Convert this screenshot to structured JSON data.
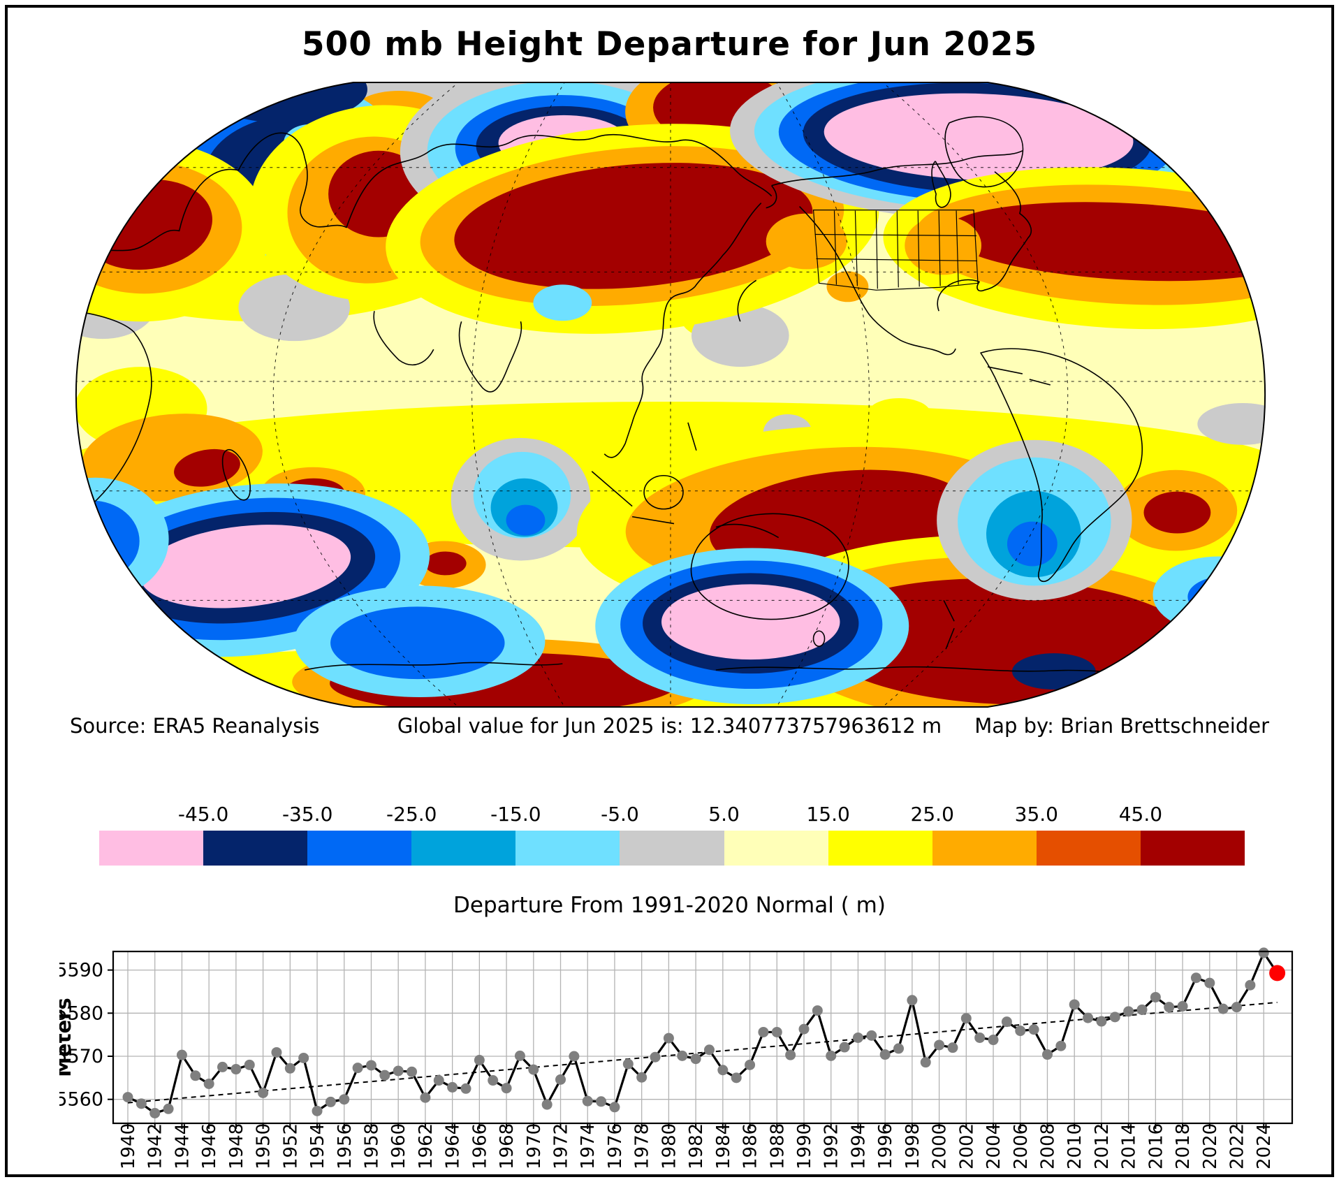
{
  "title": "500 mb Height Departure for Jun 2025",
  "footer": {
    "source": "Source: ERA5 Reanalysis",
    "global_value": "Global value for Jun 2025 is: 12.340773757963612 m",
    "credit": "Map by: Brian Brettschneider"
  },
  "colorbar": {
    "caption": "Departure From 1991-2020 Normal ( m)",
    "tick_labels": [
      "-45.0",
      "-35.0",
      "-25.0",
      "-15.0",
      "-5.0",
      "5.0",
      "15.0",
      "25.0",
      "35.0",
      "45.0"
    ],
    "colors": [
      "#FFBEE3",
      "#04246B",
      "#0069F5",
      "#00A3DC",
      "#6FE0FF",
      "#CBCBCB",
      "#FFFFB8",
      "#FFFF00",
      "#FFAB00",
      "#E54F00",
      "#A30000"
    ]
  },
  "chart_data": {
    "type": "line",
    "ylabel": "Meters",
    "x_start": 1940,
    "x_end": 2025,
    "x_tick_step": 2,
    "x_tick_labels": [
      "1940",
      "1942",
      "1944",
      "1946",
      "1948",
      "1950",
      "1952",
      "1954",
      "1956",
      "1958",
      "1960",
      "1962",
      "1964",
      "1966",
      "1968",
      "1970",
      "1972",
      "1974",
      "1976",
      "1978",
      "1980",
      "1982",
      "1984",
      "1986",
      "1988",
      "1990",
      "1992",
      "1994",
      "1996",
      "1998",
      "2000",
      "2002",
      "2004",
      "2006",
      "2008",
      "2010",
      "2012",
      "2014",
      "2016",
      "2018",
      "2020",
      "2022",
      "2024"
    ],
    "ytick_values": [
      5560,
      5570,
      5580,
      5590
    ],
    "ytick_labels": [
      "5560",
      "5570",
      "5580",
      "5590"
    ],
    "ylim": [
      5554.4,
      5594.3
    ],
    "values": [
      5560.5,
      5559.0,
      5556.8,
      5557.8,
      5570.3,
      5565.5,
      5563.6,
      5567.5,
      5567.0,
      5568.0,
      5561.5,
      5570.9,
      5567.2,
      5569.6,
      5557.3,
      5559.4,
      5560.0,
      5567.3,
      5567.9,
      5565.6,
      5566.6,
      5566.4,
      5560.4,
      5564.4,
      5562.8,
      5562.5,
      5569.1,
      5564.4,
      5562.6,
      5570.1,
      5566.9,
      5558.8,
      5564.6,
      5570.0,
      5559.6,
      5559.5,
      5558.2,
      5568.2,
      5565.1,
      5569.8,
      5574.2,
      5570.1,
      5569.4,
      5571.5,
      5566.8,
      5565.0,
      5568.0,
      5575.6,
      5575.6,
      5570.3,
      5576.3,
      5580.6,
      5570.1,
      5572.1,
      5574.3,
      5574.8,
      5570.4,
      5571.8,
      5583.0,
      5568.6,
      5572.6,
      5572.0,
      5578.8,
      5574.3,
      5573.8,
      5578.0,
      5575.9,
      5576.2,
      5570.4,
      5572.4,
      5582.0,
      5578.9,
      5578.1,
      5579.1,
      5580.4,
      5580.8,
      5583.7,
      5581.4,
      5581.6,
      5588.2,
      5587.0,
      5581.0,
      5581.4,
      5586.5,
      5594.0,
      5589.3
    ],
    "highlight_year": 2025,
    "highlight_color": "#FF0000",
    "point_color": "#7F7F7F",
    "line_color": "#000000",
    "grid_color": "#B3B3B3",
    "trend": {
      "start_year": 1940,
      "start_value": 5559.2,
      "end_year": 2025,
      "end_value": 5582.5
    }
  }
}
